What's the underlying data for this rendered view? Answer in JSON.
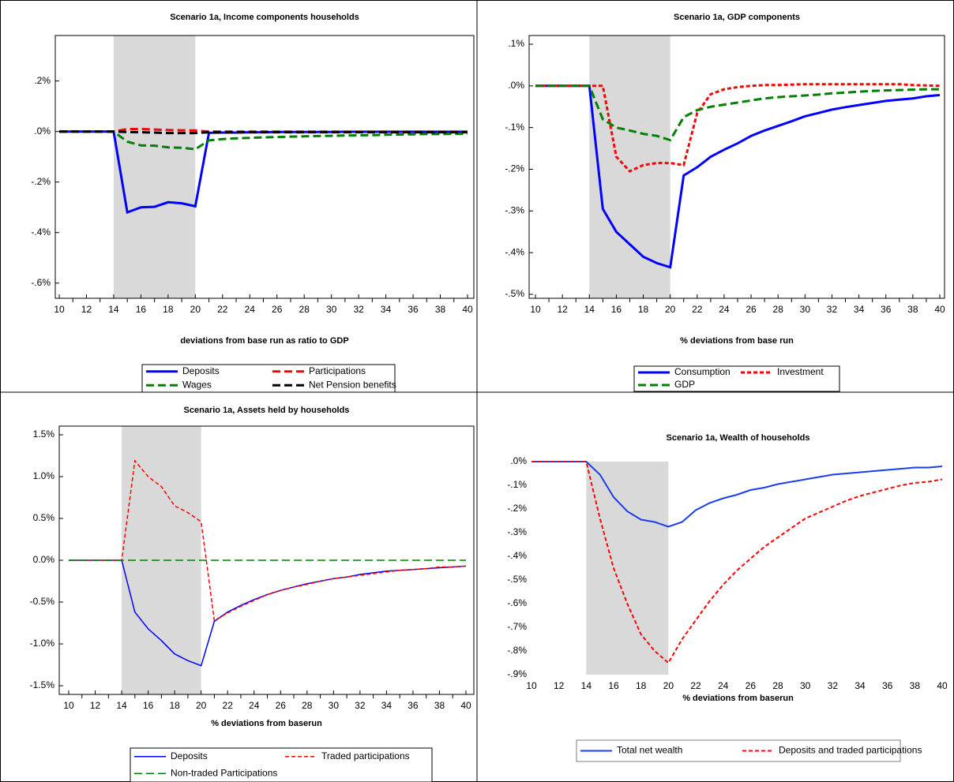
{
  "chart_data": [
    {
      "type": "line",
      "title": "Scenario 1a, Income components households",
      "xlabel": "deviations from base run as ratio to GDP",
      "x": [
        10,
        11,
        12,
        13,
        14,
        15,
        16,
        17,
        18,
        19,
        20,
        21,
        22,
        23,
        24,
        25,
        26,
        27,
        28,
        29,
        30,
        31,
        32,
        33,
        34,
        35,
        36,
        37,
        38,
        39,
        40
      ],
      "xlim": [
        10,
        40
      ],
      "xticks": [
        10,
        12,
        14,
        16,
        18,
        20,
        22,
        24,
        26,
        28,
        30,
        32,
        34,
        36,
        38,
        40
      ],
      "ylim": [
        -0.66,
        0.38
      ],
      "yticks": [
        {
          "value": 0.2,
          "label": ".2%"
        },
        {
          "value": 0,
          "label": ".0%"
        },
        {
          "value": -0.2,
          "label": "-.2%"
        },
        {
          "value": -0.4,
          "label": "-.4%"
        },
        {
          "value": -0.6,
          "label": "-.6%"
        }
      ],
      "shade": [
        14,
        20
      ],
      "series": [
        {
          "name": "Deposits",
          "color": "#0000ff",
          "style": "solid",
          "values": [
            0,
            0,
            0,
            0,
            0,
            -0.32,
            -0.3,
            -0.298,
            -0.28,
            -0.284,
            -0.296,
            -0.005,
            -0.004,
            -0.004,
            -0.003,
            -0.003,
            -0.002,
            -0.002,
            -0.002,
            -0.002,
            -0.002,
            -0.001,
            -0.001,
            -0.001,
            -0.001,
            -0.001,
            -0.001,
            -0.001,
            -0.001,
            -0.001,
            -0.001
          ]
        },
        {
          "name": "Participations",
          "color": "#ff0000",
          "style": "dashed",
          "values": [
            0,
            0,
            0,
            0,
            0,
            0.01,
            0.01,
            0.008,
            0.006,
            0.005,
            0.004,
            0,
            0,
            0,
            0,
            0,
            0,
            0,
            0,
            0,
            0,
            0,
            0,
            0,
            0,
            0,
            0,
            0,
            0,
            0,
            0
          ]
        },
        {
          "name": "Wages",
          "color": "#008000",
          "style": "dashed",
          "values": [
            0,
            0,
            0,
            0,
            0,
            -0.04,
            -0.055,
            -0.056,
            -0.063,
            -0.064,
            -0.07,
            -0.035,
            -0.03,
            -0.027,
            -0.025,
            -0.023,
            -0.022,
            -0.02,
            -0.019,
            -0.018,
            -0.017,
            -0.016,
            -0.015,
            -0.014,
            -0.013,
            -0.012,
            -0.011,
            -0.01,
            -0.01,
            -0.009,
            -0.009
          ]
        },
        {
          "name": "Net Pension benefits",
          "color": "#000000",
          "style": "dashed",
          "values": [
            0,
            0,
            0,
            0,
            0,
            -0.002,
            -0.003,
            -0.004,
            -0.006,
            -0.006,
            -0.006,
            -0.003,
            -0.003,
            -0.003,
            -0.003,
            -0.003,
            -0.003,
            -0.003,
            -0.003,
            -0.003,
            -0.003,
            -0.003,
            -0.003,
            -0.003,
            -0.003,
            -0.003,
            -0.003,
            -0.003,
            -0.003,
            -0.003,
            -0.003
          ]
        }
      ]
    },
    {
      "type": "line",
      "title": "Scenario 1a, GDP components",
      "xlabel": "% deviations from base run",
      "x": [
        10,
        11,
        12,
        13,
        14,
        15,
        16,
        17,
        18,
        19,
        20,
        21,
        22,
        23,
        24,
        25,
        26,
        27,
        28,
        29,
        30,
        31,
        32,
        33,
        34,
        35,
        36,
        37,
        38,
        39,
        40
      ],
      "xlim": [
        10,
        40
      ],
      "xticks": [
        10,
        12,
        14,
        16,
        18,
        20,
        22,
        24,
        26,
        28,
        30,
        32,
        34,
        36,
        38,
        40
      ],
      "ylim": [
        -0.5,
        0.1
      ],
      "yticks": [
        {
          "value": 0.1,
          "label": ".1%"
        },
        {
          "value": 0,
          "label": ".0%"
        },
        {
          "value": -0.1,
          "label": "-.1%"
        },
        {
          "value": -0.2,
          "label": "-.2%"
        },
        {
          "value": -0.3,
          "label": "-.3%"
        },
        {
          "value": -0.4,
          "label": "-.4%"
        },
        {
          "value": -0.5,
          "label": "-.5%"
        }
      ],
      "shade": [
        14,
        20
      ],
      "series": [
        {
          "name": "Consumption",
          "color": "#0000ff",
          "style": "solid",
          "values": [
            0,
            0,
            0,
            0,
            0,
            -0.295,
            -0.35,
            -0.38,
            -0.41,
            -0.425,
            -0.435,
            -0.215,
            -0.195,
            -0.17,
            -0.153,
            -0.138,
            -0.12,
            -0.107,
            -0.096,
            -0.085,
            -0.073,
            -0.065,
            -0.057,
            -0.051,
            -0.046,
            -0.041,
            -0.036,
            -0.033,
            -0.03,
            -0.025,
            -0.022
          ]
        },
        {
          "name": "Investment",
          "color": "#ff0000",
          "style": "dotted",
          "values": [
            0,
            0,
            0,
            0,
            0,
            0,
            -0.17,
            -0.205,
            -0.19,
            -0.185,
            -0.185,
            -0.19,
            -0.065,
            -0.02,
            -0.008,
            -0.003,
            0,
            0.002,
            0.002,
            0.003,
            0.004,
            0.004,
            0.004,
            0.004,
            0.004,
            0.004,
            0.004,
            0.004,
            0.002,
            0.001,
            0
          ]
        },
        {
          "name": "GDP",
          "color": "#008000",
          "style": "dashed",
          "values": [
            0,
            0,
            0,
            0,
            0,
            -0.08,
            -0.1,
            -0.107,
            -0.115,
            -0.12,
            -0.13,
            -0.075,
            -0.058,
            -0.05,
            -0.045,
            -0.04,
            -0.035,
            -0.03,
            -0.027,
            -0.025,
            -0.023,
            -0.021,
            -0.018,
            -0.016,
            -0.014,
            -0.012,
            -0.011,
            -0.01,
            -0.009,
            -0.008,
            -0.008
          ]
        }
      ]
    },
    {
      "type": "line",
      "title": "Scenario 1a, Assets held by households",
      "xlabel": "% deviations from baserun",
      "x": [
        10,
        11,
        12,
        13,
        14,
        15,
        16,
        17,
        18,
        19,
        20,
        21,
        22,
        23,
        24,
        25,
        26,
        27,
        28,
        29,
        30,
        31,
        32,
        33,
        34,
        35,
        36,
        37,
        38,
        39,
        40
      ],
      "xlim": [
        10,
        40
      ],
      "xticks": [
        10,
        12,
        14,
        16,
        18,
        20,
        22,
        24,
        26,
        28,
        30,
        32,
        34,
        36,
        38,
        40
      ],
      "ylim": [
        -1.5,
        1.5
      ],
      "yticks": [
        {
          "value": 1.5,
          "label": "1.5%"
        },
        {
          "value": 1,
          "label": "1.0%"
        },
        {
          "value": 0.5,
          "label": "0.5%"
        },
        {
          "value": 0,
          "label": "0.0%"
        },
        {
          "value": -0.5,
          "label": "-0.5%"
        },
        {
          "value": -1,
          "label": "-1.0%"
        },
        {
          "value": -1.5,
          "label": "-1.5%"
        }
      ],
      "shade": [
        14,
        20
      ],
      "series": [
        {
          "name": "Deposits",
          "color": "#0000ff",
          "style": "solid",
          "values": [
            0,
            0,
            0,
            0,
            0,
            -0.62,
            -0.82,
            -0.96,
            -1.12,
            -1.2,
            -1.26,
            -0.73,
            -0.62,
            -0.54,
            -0.47,
            -0.41,
            -0.36,
            -0.32,
            -0.28,
            -0.25,
            -0.22,
            -0.2,
            -0.17,
            -0.15,
            -0.13,
            -0.12,
            -0.11,
            -0.1,
            -0.09,
            -0.08,
            -0.07
          ]
        },
        {
          "name": "Traded participations",
          "color": "#ff0000",
          "style": "dotted",
          "values": [
            0,
            0,
            0,
            0,
            0,
            1.19,
            1,
            0.88,
            0.65,
            0.57,
            0.46,
            -0.72,
            -0.63,
            -0.55,
            -0.48,
            -0.41,
            -0.36,
            -0.32,
            -0.29,
            -0.25,
            -0.22,
            -0.2,
            -0.18,
            -0.16,
            -0.14,
            -0.12,
            -0.11,
            -0.1,
            -0.08,
            -0.08,
            -0.07
          ]
        },
        {
          "name": "Non-traded Participations",
          "color": "#008000",
          "style": "dashed",
          "values": [
            0,
            0,
            0,
            0,
            0,
            0,
            0,
            0,
            0,
            0,
            0,
            0,
            0,
            0,
            0,
            0,
            0,
            0,
            0,
            0,
            0,
            0,
            0,
            0,
            0,
            0,
            0,
            0,
            0,
            0,
            0
          ]
        }
      ]
    },
    {
      "type": "line",
      "title": "Scenario 1a, Wealth of households",
      "xlabel": "% deviations from baserun",
      "x": [
        10,
        11,
        12,
        13,
        14,
        15,
        16,
        17,
        18,
        19,
        20,
        21,
        22,
        23,
        24,
        25,
        26,
        27,
        28,
        29,
        30,
        31,
        32,
        33,
        34,
        35,
        36,
        37,
        38,
        39,
        40
      ],
      "xlim": [
        10,
        40
      ],
      "xticks": [
        10,
        12,
        14,
        16,
        18,
        20,
        22,
        24,
        26,
        28,
        30,
        32,
        34,
        36,
        38,
        40
      ],
      "ylim": [
        -0.9,
        0
      ],
      "yticks": [
        {
          "value": 0,
          "label": ".0%"
        },
        {
          "value": -0.1,
          "label": "-.1%"
        },
        {
          "value": -0.2,
          "label": "-.2%"
        },
        {
          "value": -0.3,
          "label": "-.3%"
        },
        {
          "value": -0.4,
          "label": "-.4%"
        },
        {
          "value": -0.5,
          "label": "-.5%"
        },
        {
          "value": -0.6,
          "label": "-.6%"
        },
        {
          "value": -0.7,
          "label": "-.7%"
        },
        {
          "value": -0.8,
          "label": "-.8%"
        },
        {
          "value": -0.9,
          "label": "-.9%"
        }
      ],
      "shade": [
        14,
        20
      ],
      "series": [
        {
          "name": "Total net wealth",
          "color": "#1a3ee8",
          "style": "solid",
          "values": [
            0,
            0,
            0,
            0,
            0,
            -0.055,
            -0.15,
            -0.21,
            -0.245,
            -0.255,
            -0.275,
            -0.255,
            -0.205,
            -0.175,
            -0.155,
            -0.14,
            -0.12,
            -0.11,
            -0.095,
            -0.085,
            -0.075,
            -0.065,
            -0.055,
            -0.05,
            -0.045,
            -0.04,
            -0.035,
            -0.03,
            -0.025,
            -0.025,
            -0.02
          ]
        },
        {
          "name": "Deposits and traded participations",
          "color": "#ff0000",
          "style": "dotted",
          "values": [
            0,
            0,
            0,
            0,
            0,
            -0.24,
            -0.45,
            -0.6,
            -0.73,
            -0.8,
            -0.85,
            -0.75,
            -0.67,
            -0.59,
            -0.52,
            -0.46,
            -0.41,
            -0.36,
            -0.32,
            -0.28,
            -0.24,
            -0.215,
            -0.19,
            -0.165,
            -0.145,
            -0.13,
            -0.115,
            -0.1,
            -0.09,
            -0.085,
            -0.075
          ]
        }
      ]
    }
  ]
}
